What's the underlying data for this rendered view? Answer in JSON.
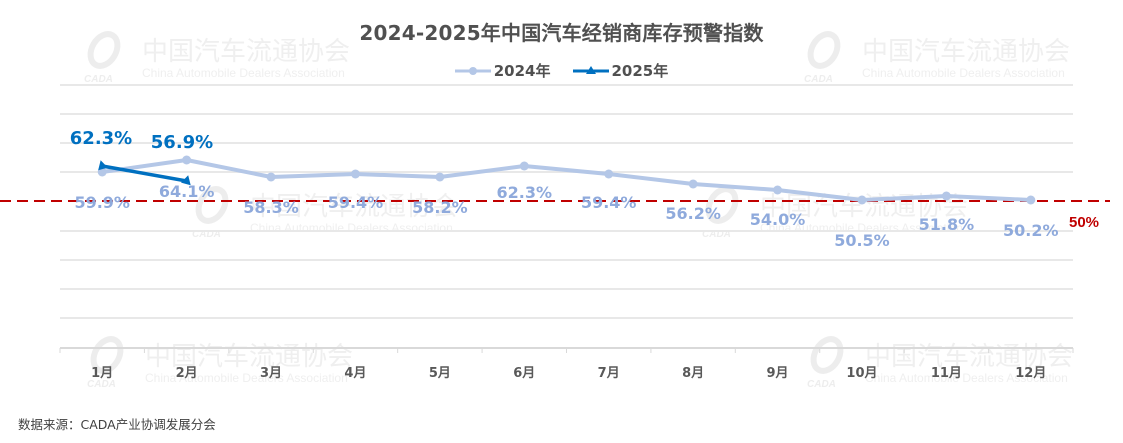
{
  "chart_data": {
    "type": "line",
    "title": "2024-2025年中国汽车经销商库存预警指数",
    "categories": [
      "1月",
      "2月",
      "3月",
      "4月",
      "5月",
      "6月",
      "7月",
      "8月",
      "9月",
      "10月",
      "11月",
      "12月"
    ],
    "series": [
      {
        "name": "2024年",
        "color": "#b4c7e7",
        "label_color": "#8faadc",
        "marker": "circle",
        "values": [
          59.9,
          64.1,
          58.3,
          59.4,
          58.2,
          62.3,
          59.4,
          56.2,
          54.0,
          50.5,
          51.8,
          50.2
        ],
        "labels": [
          "59.9%",
          "64.1%",
          "58.3%",
          "59.4%",
          "58.2%",
          "62.3%",
          "59.4%",
          "56.2%",
          "54.0%",
          "50.5%",
          "51.8%",
          "50.2%"
        ]
      },
      {
        "name": "2025年",
        "color": "#0070c0",
        "label_color": "#0070c0",
        "marker": "triangle",
        "values": [
          62.3,
          56.9
        ],
        "labels": [
          "62.3%",
          "56.9%"
        ]
      }
    ],
    "reference_line": {
      "value": 50,
      "label": "50%",
      "color": "#c00000",
      "style": "dashed"
    },
    "xlabel": "",
    "ylabel": "",
    "grid": true,
    "legend_position": "top"
  },
  "title": "2024-2025年中国汽车经销商库存预警指数",
  "legend": {
    "s2024": "2024年",
    "s2025": "2025年"
  },
  "reference_label": "50%",
  "source": "数据来源：CADA产业协调发展分会",
  "watermark": {
    "cn": "中国汽车流通协会",
    "en": "China Automobile Dealers Association",
    "logo": "CADA"
  }
}
